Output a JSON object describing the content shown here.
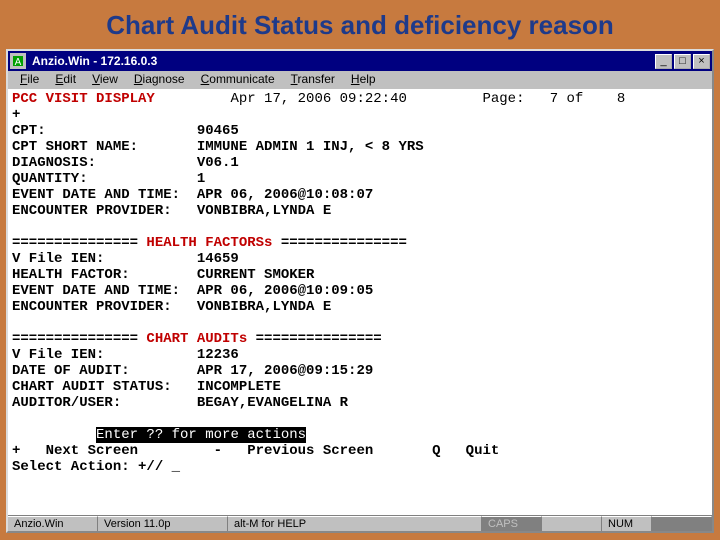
{
  "slide_title": "Chart Audit Status and deficiency reason",
  "window": {
    "title": "Anzio.Win  -  172.16.0.3",
    "min_label": "_",
    "max_label": "□",
    "close_label": "×"
  },
  "menu": {
    "file": "File",
    "edit": "Edit",
    "view": "View",
    "diagnose": "Diagnose",
    "communicate": "Communicate",
    "transfer": "Transfer",
    "help": "Help"
  },
  "screen": {
    "header_title": "PCC VISIT DISPLAY",
    "header_date": "Apr 17, 2006 09:22:40",
    "page_label": "Page:",
    "page_cur": "7",
    "page_of": "of",
    "page_total": "8",
    "plus": "+",
    "sec1": {
      "cpt_lbl": "CPT:",
      "cpt_val": "90465",
      "sname_lbl": "CPT SHORT NAME:",
      "sname_val": "IMMUNE ADMIN 1 INJ, < 8 YRS",
      "diag_lbl": "DIAGNOSIS:",
      "diag_val": "V06.1",
      "qty_lbl": "QUANTITY:",
      "qty_val": "1",
      "edt_lbl": "EVENT DATE AND TIME:",
      "edt_val": "APR 06, 2006@10:08:07",
      "prov_lbl": "ENCOUNTER PROVIDER:",
      "prov_val": "VONBIBRA,LYNDA E"
    },
    "hf_header": "=============== HEALTH FACTORSs ===============",
    "hf_header_pre": "=============== ",
    "hf_header_mid": "HEALTH FACTORSs",
    "hf_header_post": " ===============",
    "sec2": {
      "ien_lbl": "V File IEN:",
      "ien_val": "14659",
      "hf_lbl": "HEALTH FACTOR:",
      "hf_val": "CURRENT SMOKER",
      "edt_lbl": "EVENT DATE AND TIME:",
      "edt_val": "APR 06, 2006@10:09:05",
      "prov_lbl": "ENCOUNTER PROVIDER:",
      "prov_val": "VONBIBRA,LYNDA E"
    },
    "ca_header_pre": "=============== ",
    "ca_header_mid": "CHART AUDITs",
    "ca_header_post": " ===============",
    "sec3": {
      "ien_lbl": "V File IEN:",
      "ien_val": "12236",
      "doa_lbl": "DATE OF AUDIT:",
      "doa_val": "APR 17, 2006@09:15:29",
      "status_lbl": "CHART AUDIT STATUS:",
      "status_val": "INCOMPLETE",
      "user_lbl": "AUDITOR/USER:",
      "user_val": "BEGAY,EVANGELINA R"
    },
    "actions_hint": "Enter ?? for more actions",
    "actions_line": "+   Next Screen         -   Previous Screen       Q   Quit",
    "prompt_lbl": "Select Action:",
    "prompt_default": "+//",
    "cursor": "_"
  },
  "status": {
    "app": "Anzio.Win",
    "version": "Version 11.0p",
    "hint": "alt-M for HELP",
    "caps": "CAPS",
    "num": "NUM"
  }
}
